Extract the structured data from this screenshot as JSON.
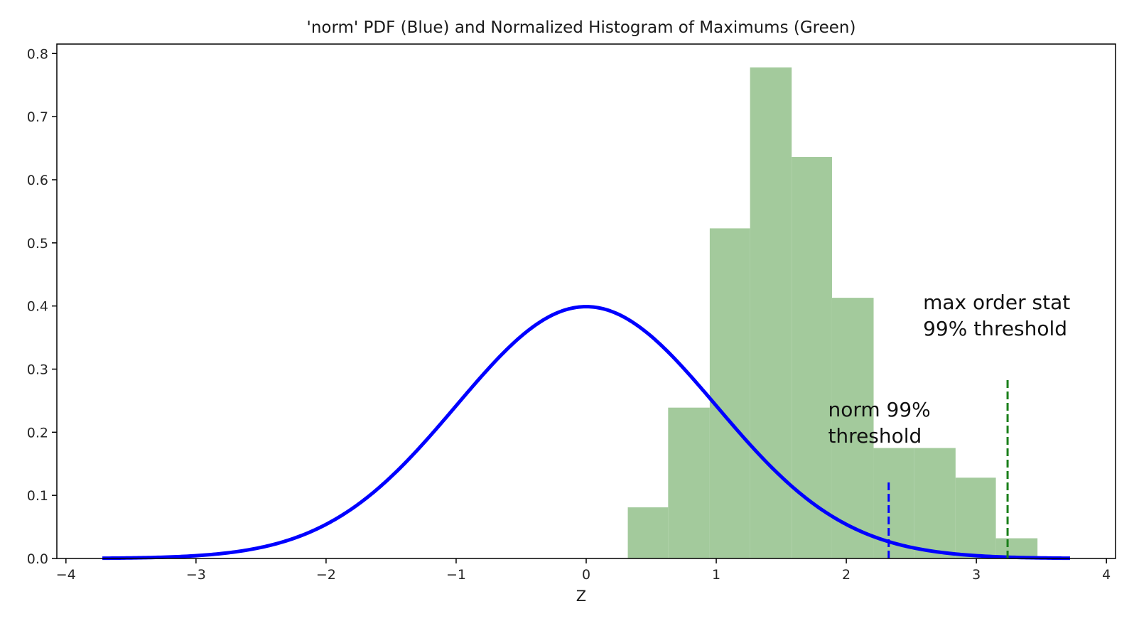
{
  "chart_data": {
    "type": "bar",
    "title": "'norm' PDF (Blue) and Normalized Histogram of Maximums (Green)",
    "xlabel": "Z",
    "ylabel": "",
    "xlim": [
      -4.07,
      4.07
    ],
    "ylim": [
      0.0,
      0.815
    ],
    "xticks": [
      -4,
      -3,
      -2,
      -1,
      0,
      1,
      2,
      3,
      4
    ],
    "xtick_labels": [
      "−4",
      "−3",
      "−2",
      "−1",
      "0",
      "1",
      "2",
      "3",
      "4"
    ],
    "yticks": [
      0.0,
      0.1,
      0.2,
      0.3,
      0.4,
      0.5,
      0.6,
      0.7,
      0.8
    ],
    "ytick_labels": [
      "0.0",
      "0.1",
      "0.2",
      "0.3",
      "0.4",
      "0.5",
      "0.6",
      "0.7",
      "0.8"
    ],
    "grid": false,
    "histogram": {
      "color": "#a3ca9c",
      "bin_edges": [
        0.32,
        0.63,
        0.95,
        1.26,
        1.58,
        1.89,
        2.21,
        2.52,
        2.84,
        3.15,
        3.47
      ],
      "values": [
        0.081,
        0.239,
        0.523,
        0.778,
        0.636,
        0.413,
        0.175,
        0.175,
        0.128,
        0.032
      ]
    },
    "pdf_curve": {
      "color": "#0000ff",
      "distribution": "standard normal",
      "x_range": [
        -3.72,
        3.72
      ]
    },
    "thresholds": [
      {
        "x": 2.326,
        "y_top": 0.123,
        "color": "#0000ff",
        "style": "dashed"
      },
      {
        "x": 3.24,
        "y_top": 0.285,
        "color": "#1a7f1a",
        "style": "dashed"
      }
    ],
    "annotations": [
      {
        "lines": [
          "norm 99%",
          "threshold"
        ],
        "x": 1.86,
        "y": 0.225
      },
      {
        "lines": [
          "max order stat",
          "99% threshold"
        ],
        "x": 2.59,
        "y": 0.395
      }
    ]
  }
}
